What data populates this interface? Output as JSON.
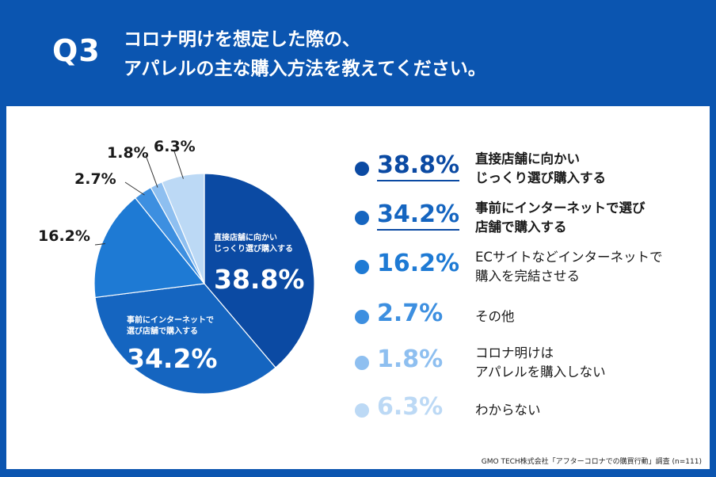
{
  "header": {
    "question": "Q3",
    "title_line1": "コロナ明けを想定した際の、",
    "title_line2": "アパレルの主な購入方法を教えてください。"
  },
  "chart_data": {
    "type": "pie",
    "title": "コロナ明けを想定した際の、アパレルの主な購入方法を教えてください。",
    "categories": [
      "直接店舗に向かいじっくり選び購入する",
      "事前にインターネットで選び店舗で購入する",
      "ECサイトなどインターネットで購入を完結させる",
      "その他",
      "コロナ明けはアパレルを購入しない",
      "わからない"
    ],
    "values": [
      38.8,
      34.2,
      16.2,
      2.7,
      1.8,
      6.3
    ],
    "value_labels": [
      "38.8%",
      "34.2%",
      "16.2%",
      "2.7%",
      "1.8%",
      "6.3%"
    ],
    "colors": [
      "#0b4aa3",
      "#1565c0",
      "#1e7ad4",
      "#3d8fe0",
      "#8ebff0",
      "#bcd9f5"
    ],
    "inside_labels": [
      {
        "line1": "直接店舗に向かい",
        "line2": "じっくり選び購入する",
        "value": "38.8%"
      },
      {
        "line1": "事前にインターネットで",
        "line2": "選び店舗で購入する",
        "value": "34.2%"
      }
    ]
  },
  "legend": {
    "items": [
      {
        "value": "38.8%",
        "line1": "直接店舗に向かい",
        "line2": "じっくり選び購入する",
        "color": "#0b4aa3",
        "emphasis": true
      },
      {
        "value": "34.2%",
        "line1": "事前にインターネットで選び",
        "line2": "店舗で購入する",
        "color": "#1565c0",
        "emphasis": true
      },
      {
        "value": "16.2%",
        "line1": "ECサイトなどインターネットで",
        "line2": "購入を完結させる",
        "color": "#1e7ad4",
        "emphasis": false
      },
      {
        "value": "2.7%",
        "line1": "その他",
        "line2": "",
        "color": "#3d8fe0",
        "emphasis": false
      },
      {
        "value": "1.8%",
        "line1": "コロナ明けは",
        "line2": "アパレルを購入しない",
        "color": "#8ebff0",
        "emphasis": false
      },
      {
        "value": "6.3%",
        "line1": "わからない",
        "line2": "",
        "color": "#bcd9f5",
        "emphasis": false
      }
    ]
  },
  "source": "GMO TECH株式会社「アフターコロナでの購買行動」調査 (n=111)"
}
